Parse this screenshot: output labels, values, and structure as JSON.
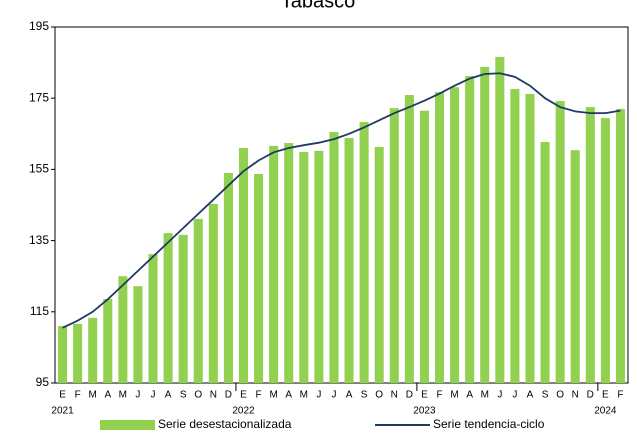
{
  "chart_data": {
    "type": "bar",
    "title": "Tabasco",
    "categories": [
      "E",
      "F",
      "M",
      "A",
      "M",
      "J",
      "J",
      "A",
      "S",
      "O",
      "N",
      "D",
      "E",
      "F",
      "M",
      "A",
      "M",
      "J",
      "J",
      "A",
      "S",
      "O",
      "N",
      "D",
      "E",
      "F",
      "M",
      "A",
      "M",
      "J",
      "J",
      "A",
      "S",
      "O",
      "N",
      "D",
      "E",
      "F"
    ],
    "years": [
      "2021",
      "2022",
      "2023",
      "2024"
    ],
    "series": [
      {
        "name": "Serie desestacionalizada",
        "type": "bar",
        "color": "#92d050",
        "values": [
          111,
          111.6,
          113.3,
          118.6,
          125,
          122.2,
          131.2,
          137.1,
          136.6,
          141.1,
          145.3,
          154,
          161,
          153.7,
          161.6,
          162.4,
          159.9,
          160.2,
          165.5,
          163.8,
          168.3,
          161.3,
          172.2,
          175.9,
          171.5,
          176.7,
          178.1,
          181.2,
          183.8,
          186.6,
          177.6,
          176.2,
          162.7,
          174.2,
          160.4,
          172.5,
          169.4,
          172
        ]
      },
      {
        "name": "Serie tendencia-ciclo",
        "type": "line",
        "color": "#1f3864",
        "values": [
          110.5,
          112.5,
          115,
          118.5,
          122.5,
          126.5,
          130.5,
          134.5,
          138.5,
          142.5,
          146.5,
          150.5,
          154.5,
          157.5,
          159.8,
          161,
          161.8,
          162.5,
          163.5,
          165,
          166.8,
          168.8,
          170.8,
          172.5,
          174.3,
          176.3,
          178.5,
          180.5,
          181.8,
          182,
          181,
          178.5,
          175,
          172.5,
          171.3,
          170.8,
          170.8,
          171.5
        ]
      }
    ],
    "ylim": [
      95,
      195
    ],
    "yticks": [
      95,
      115,
      135,
      155,
      175,
      195
    ],
    "grid": false
  }
}
